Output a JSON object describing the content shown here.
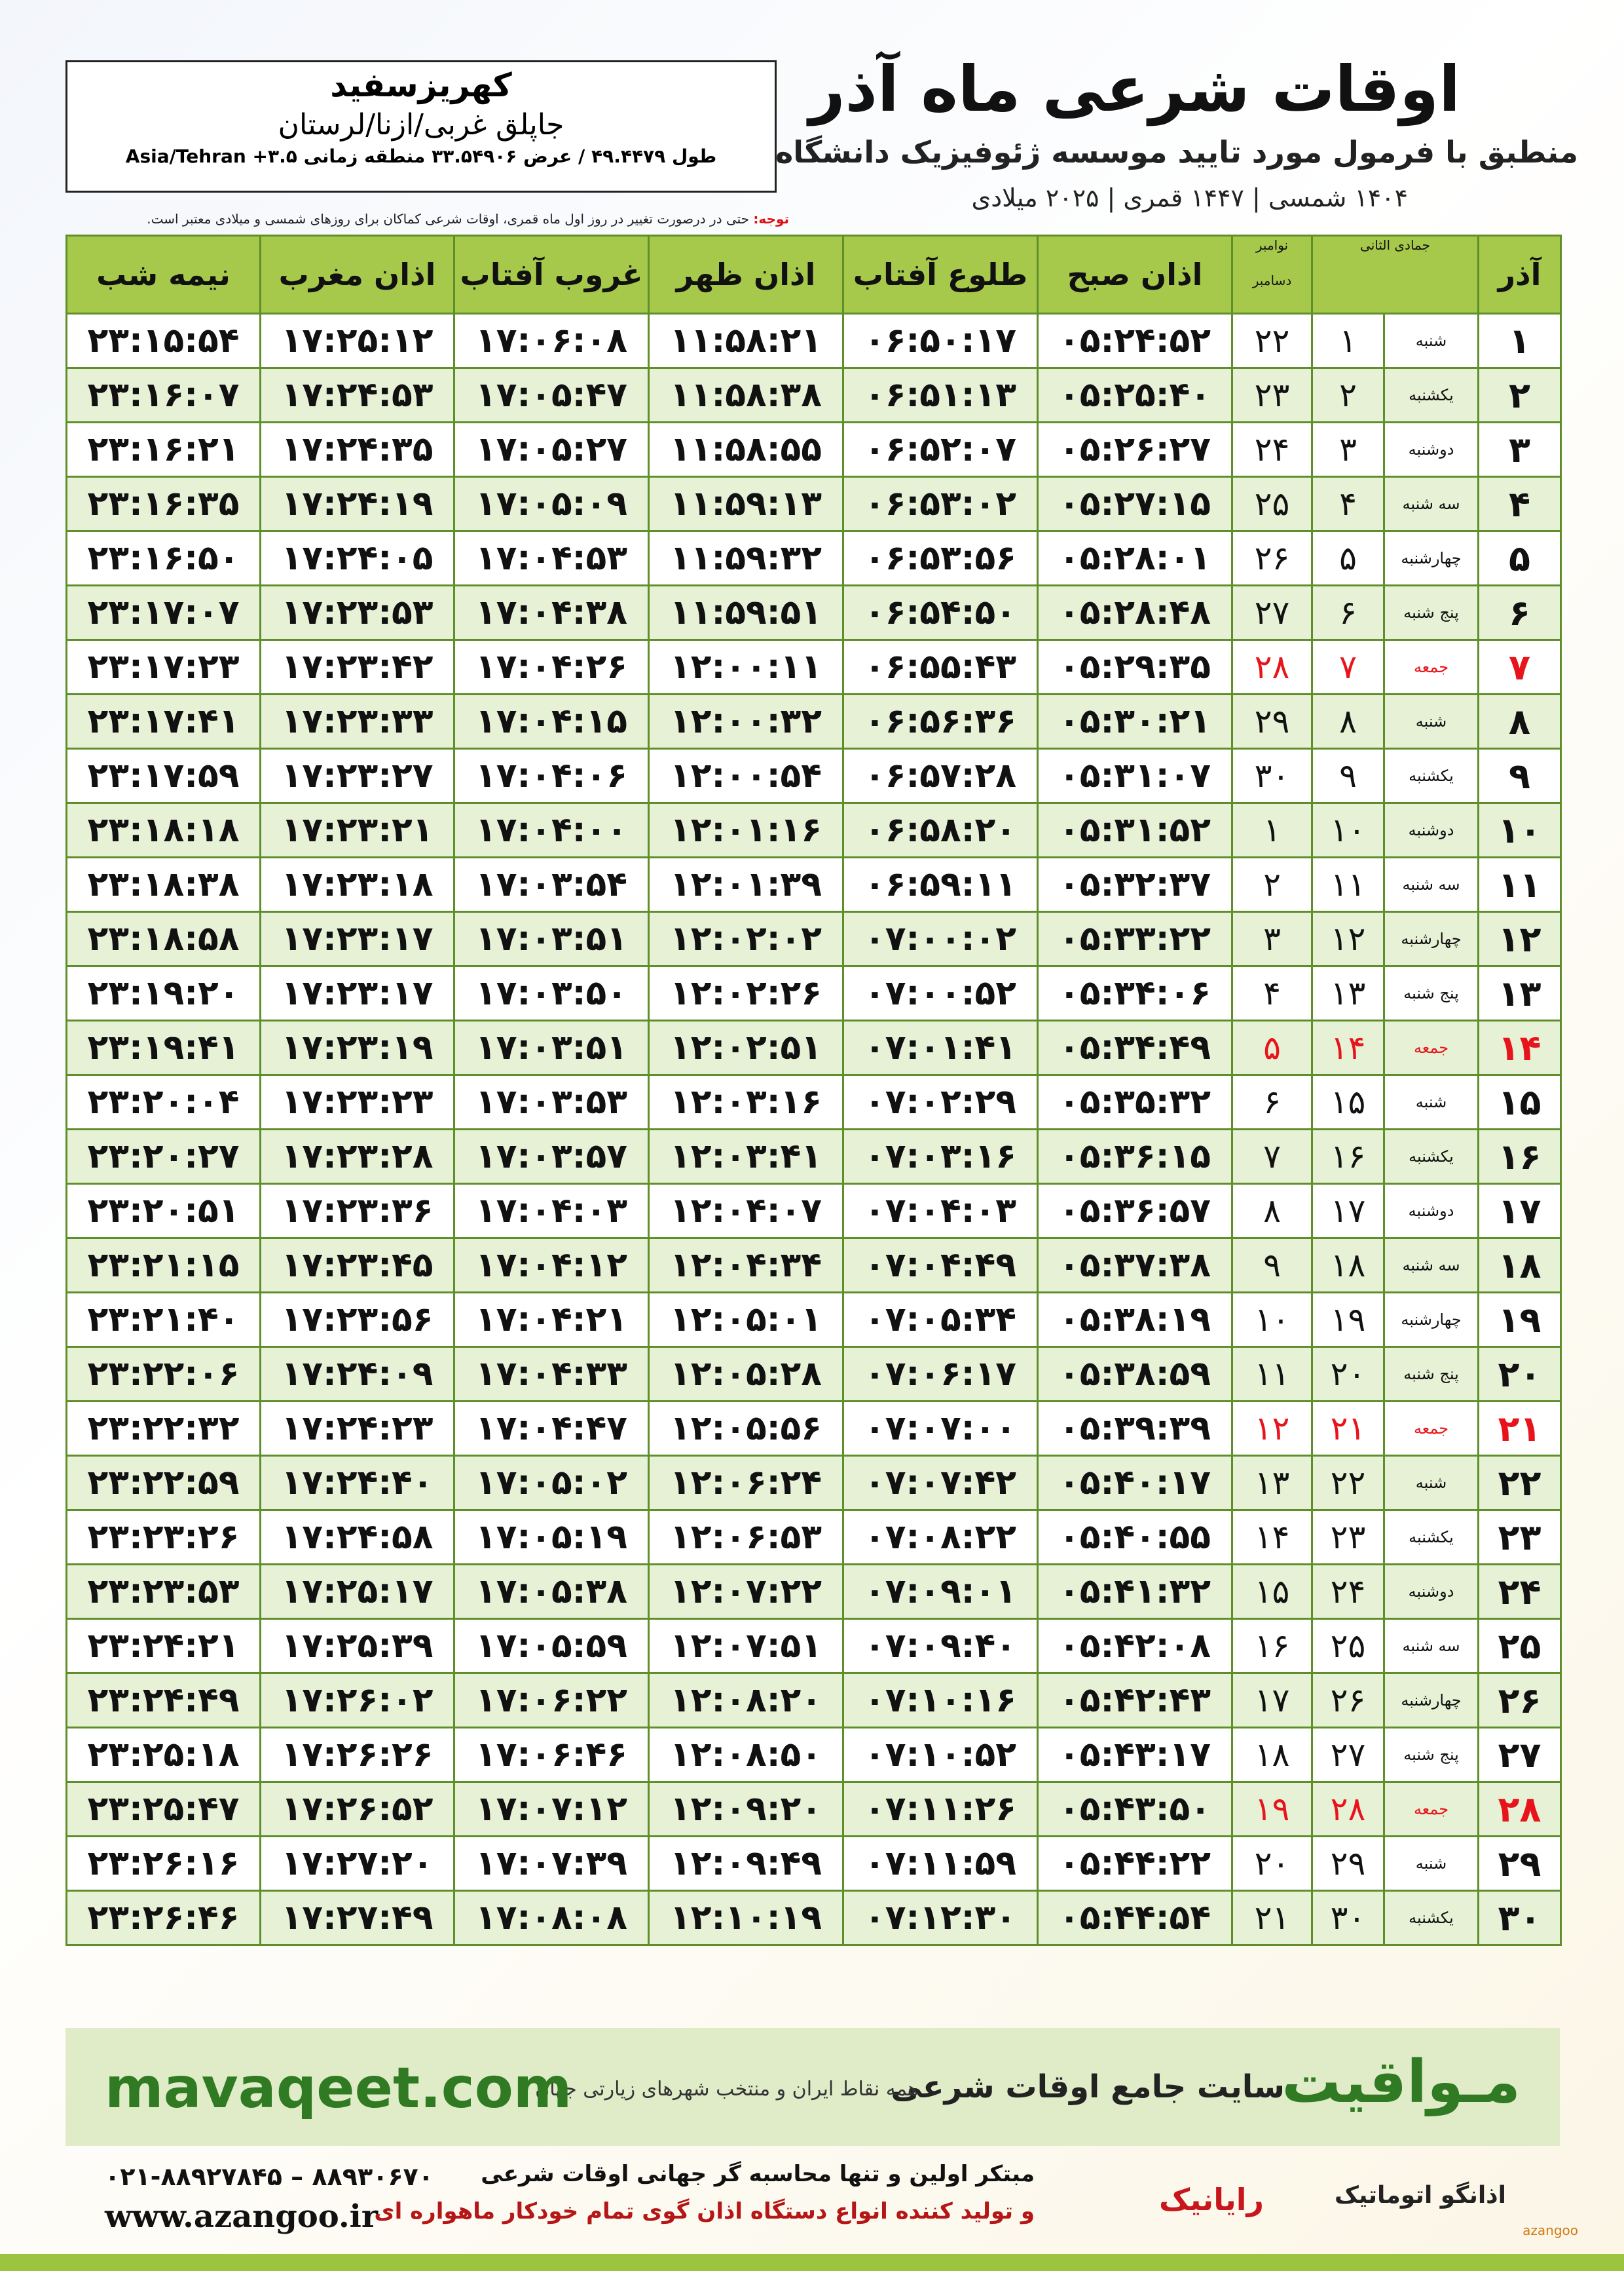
{
  "header": {
    "title": "اوقات شرعی ماه آذر",
    "subtitle": "منطبق با فرمول مورد تایید موسسه ژئوفیزیک دانشگاه تهران",
    "dates": "۱۴۰۴ شمسی | ۱۴۴۷ قمری | ۲۰۲۵ میلادی"
  },
  "location": {
    "name": "کهریزسفید",
    "region": "جاپلق غربی/ازنا/لرستان",
    "coords": "طول ۴۹.۴۴۷۹ / عرض ۳۳.۵۴۹۰۶ منطقه زمانی ۳.۵+ Asia/Tehran"
  },
  "note": {
    "label": "توجه:",
    "text": "حتی در درصورت تغییر در روز اول ماه قمری، اوقات شرعی کماکان برای روزهای شمسی و میلادی معتبر است."
  },
  "table": {
    "holiday_color": "#e8141b",
    "columns": [
      "آذر",
      "جمادی الثانی",
      "نوامبر",
      "دسامبر",
      "اذان صبح",
      "طلوع آفتاب",
      "اذان ظهر",
      "غروب آفتاب",
      "اذان مغرب",
      "نیمه شب"
    ],
    "rows": [
      {
        "cells": [
          "۱",
          "شنبه",
          "۱",
          "۲۲",
          "۰۵:۲۴:۵۲",
          "۰۶:۵۰:۱۷",
          "۱۱:۵۸:۲۱",
          "۱۷:۰۶:۰۸",
          "۱۷:۲۵:۱۲",
          "۲۳:۱۵:۵۴"
        ]
      },
      {
        "cells": [
          "۲",
          "یکشنبه",
          "۲",
          "۲۳",
          "۰۵:۲۵:۴۰",
          "۰۶:۵۱:۱۳",
          "۱۱:۵۸:۳۸",
          "۱۷:۰۵:۴۷",
          "۱۷:۲۴:۵۳",
          "۲۳:۱۶:۰۷"
        ]
      },
      {
        "cells": [
          "۳",
          "دوشنبه",
          "۳",
          "۲۴",
          "۰۵:۲۶:۲۷",
          "۰۶:۵۲:۰۷",
          "۱۱:۵۸:۵۵",
          "۱۷:۰۵:۲۷",
          "۱۷:۲۴:۳۵",
          "۲۳:۱۶:۲۱"
        ]
      },
      {
        "cells": [
          "۴",
          "سه شنبه",
          "۴",
          "۲۵",
          "۰۵:۲۷:۱۵",
          "۰۶:۵۳:۰۲",
          "۱۱:۵۹:۱۳",
          "۱۷:۰۵:۰۹",
          "۱۷:۲۴:۱۹",
          "۲۳:۱۶:۳۵"
        ]
      },
      {
        "cells": [
          "۵",
          "چهارشنبه",
          "۵",
          "۲۶",
          "۰۵:۲۸:۰۱",
          "۰۶:۵۳:۵۶",
          "۱۱:۵۹:۳۲",
          "۱۷:۰۴:۵۳",
          "۱۷:۲۴:۰۵",
          "۲۳:۱۶:۵۰"
        ]
      },
      {
        "cells": [
          "۶",
          "پنج شنبه",
          "۶",
          "۲۷",
          "۰۵:۲۸:۴۸",
          "۰۶:۵۴:۵۰",
          "۱۱:۵۹:۵۱",
          "۱۷:۰۴:۳۸",
          "۱۷:۲۳:۵۳",
          "۲۳:۱۷:۰۷"
        ]
      },
      {
        "cells": [
          "۷",
          "جمعه",
          "۷",
          "۲۸",
          "۰۵:۲۹:۳۵",
          "۰۶:۵۵:۴۳",
          "۱۲:۰۰:۱۱",
          "۱۷:۰۴:۲۶",
          "۱۷:۲۳:۴۲",
          "۲۳:۱۷:۲۳"
        ],
        "holiday": true
      },
      {
        "cells": [
          "۸",
          "شنبه",
          "۸",
          "۲۹",
          "۰۵:۳۰:۲۱",
          "۰۶:۵۶:۳۶",
          "۱۲:۰۰:۳۲",
          "۱۷:۰۴:۱۵",
          "۱۷:۲۳:۳۳",
          "۲۳:۱۷:۴۱"
        ]
      },
      {
        "cells": [
          "۹",
          "یکشنبه",
          "۹",
          "۳۰",
          "۰۵:۳۱:۰۷",
          "۰۶:۵۷:۲۸",
          "۱۲:۰۰:۵۴",
          "۱۷:۰۴:۰۶",
          "۱۷:۲۳:۲۷",
          "۲۳:۱۷:۵۹"
        ]
      },
      {
        "cells": [
          "۱۰",
          "دوشنبه",
          "۱۰",
          "۱",
          "۰۵:۳۱:۵۲",
          "۰۶:۵۸:۲۰",
          "۱۲:۰۱:۱۶",
          "۱۷:۰۴:۰۰",
          "۱۷:۲۳:۲۱",
          "۲۳:۱۸:۱۸"
        ]
      },
      {
        "cells": [
          "۱۱",
          "سه شنبه",
          "۱۱",
          "۲",
          "۰۵:۳۲:۳۷",
          "۰۶:۵۹:۱۱",
          "۱۲:۰۱:۳۹",
          "۱۷:۰۳:۵۴",
          "۱۷:۲۳:۱۸",
          "۲۳:۱۸:۳۸"
        ]
      },
      {
        "cells": [
          "۱۲",
          "چهارشنبه",
          "۱۲",
          "۳",
          "۰۵:۳۳:۲۲",
          "۰۷:۰۰:۰۲",
          "۱۲:۰۲:۰۲",
          "۱۷:۰۳:۵۱",
          "۱۷:۲۳:۱۷",
          "۲۳:۱۸:۵۸"
        ]
      },
      {
        "cells": [
          "۱۳",
          "پنج شنبه",
          "۱۳",
          "۴",
          "۰۵:۳۴:۰۶",
          "۰۷:۰۰:۵۲",
          "۱۲:۰۲:۲۶",
          "۱۷:۰۳:۵۰",
          "۱۷:۲۳:۱۷",
          "۲۳:۱۹:۲۰"
        ]
      },
      {
        "cells": [
          "۱۴",
          "جمعه",
          "۱۴",
          "۵",
          "۰۵:۳۴:۴۹",
          "۰۷:۰۱:۴۱",
          "۱۲:۰۲:۵۱",
          "۱۷:۰۳:۵۱",
          "۱۷:۲۳:۱۹",
          "۲۳:۱۹:۴۱"
        ],
        "holiday": true
      },
      {
        "cells": [
          "۱۵",
          "شنبه",
          "۱۵",
          "۶",
          "۰۵:۳۵:۳۲",
          "۰۷:۰۲:۲۹",
          "۱۲:۰۳:۱۶",
          "۱۷:۰۳:۵۳",
          "۱۷:۲۳:۲۳",
          "۲۳:۲۰:۰۴"
        ]
      },
      {
        "cells": [
          "۱۶",
          "یکشنبه",
          "۱۶",
          "۷",
          "۰۵:۳۶:۱۵",
          "۰۷:۰۳:۱۶",
          "۱۲:۰۳:۴۱",
          "۱۷:۰۳:۵۷",
          "۱۷:۲۳:۲۸",
          "۲۳:۲۰:۲۷"
        ]
      },
      {
        "cells": [
          "۱۷",
          "دوشنبه",
          "۱۷",
          "۸",
          "۰۵:۳۶:۵۷",
          "۰۷:۰۴:۰۳",
          "۱۲:۰۴:۰۷",
          "۱۷:۰۴:۰۳",
          "۱۷:۲۳:۳۶",
          "۲۳:۲۰:۵۱"
        ]
      },
      {
        "cells": [
          "۱۸",
          "سه شنبه",
          "۱۸",
          "۹",
          "۰۵:۳۷:۳۸",
          "۰۷:۰۴:۴۹",
          "۱۲:۰۴:۳۴",
          "۱۷:۰۴:۱۲",
          "۱۷:۲۳:۴۵",
          "۲۳:۲۱:۱۵"
        ]
      },
      {
        "cells": [
          "۱۹",
          "چهارشنبه",
          "۱۹",
          "۱۰",
          "۰۵:۳۸:۱۹",
          "۰۷:۰۵:۳۴",
          "۱۲:۰۵:۰۱",
          "۱۷:۰۴:۲۱",
          "۱۷:۲۳:۵۶",
          "۲۳:۲۱:۴۰"
        ]
      },
      {
        "cells": [
          "۲۰",
          "پنج شنبه",
          "۲۰",
          "۱۱",
          "۰۵:۳۸:۵۹",
          "۰۷:۰۶:۱۷",
          "۱۲:۰۵:۲۸",
          "۱۷:۰۴:۳۳",
          "۱۷:۲۴:۰۹",
          "۲۳:۲۲:۰۶"
        ]
      },
      {
        "cells": [
          "۲۱",
          "جمعه",
          "۲۱",
          "۱۲",
          "۰۵:۳۹:۳۹",
          "۰۷:۰۷:۰۰",
          "۱۲:۰۵:۵۶",
          "۱۷:۰۴:۴۷",
          "۱۷:۲۴:۲۳",
          "۲۳:۲۲:۳۲"
        ],
        "holiday": true
      },
      {
        "cells": [
          "۲۲",
          "شنبه",
          "۲۲",
          "۱۳",
          "۰۵:۴۰:۱۷",
          "۰۷:۰۷:۴۲",
          "۱۲:۰۶:۲۴",
          "۱۷:۰۵:۰۲",
          "۱۷:۲۴:۴۰",
          "۲۳:۲۲:۵۹"
        ]
      },
      {
        "cells": [
          "۲۳",
          "یکشنبه",
          "۲۳",
          "۱۴",
          "۰۵:۴۰:۵۵",
          "۰۷:۰۸:۲۲",
          "۱۲:۰۶:۵۳",
          "۱۷:۰۵:۱۹",
          "۱۷:۲۴:۵۸",
          "۲۳:۲۳:۲۶"
        ]
      },
      {
        "cells": [
          "۲۴",
          "دوشنبه",
          "۲۴",
          "۱۵",
          "۰۵:۴۱:۳۲",
          "۰۷:۰۹:۰۱",
          "۱۲:۰۷:۲۲",
          "۱۷:۰۵:۳۸",
          "۱۷:۲۵:۱۷",
          "۲۳:۲۳:۵۳"
        ]
      },
      {
        "cells": [
          "۲۵",
          "سه شنبه",
          "۲۵",
          "۱۶",
          "۰۵:۴۲:۰۸",
          "۰۷:۰۹:۴۰",
          "۱۲:۰۷:۵۱",
          "۱۷:۰۵:۵۹",
          "۱۷:۲۵:۳۹",
          "۲۳:۲۴:۲۱"
        ]
      },
      {
        "cells": [
          "۲۶",
          "چهارشنبه",
          "۲۶",
          "۱۷",
          "۰۵:۴۲:۴۳",
          "۰۷:۱۰:۱۶",
          "۱۲:۰۸:۲۰",
          "۱۷:۰۶:۲۲",
          "۱۷:۲۶:۰۲",
          "۲۳:۲۴:۴۹"
        ]
      },
      {
        "cells": [
          "۲۷",
          "پنج شنبه",
          "۲۷",
          "۱۸",
          "۰۵:۴۳:۱۷",
          "۰۷:۱۰:۵۲",
          "۱۲:۰۸:۵۰",
          "۱۷:۰۶:۴۶",
          "۱۷:۲۶:۲۶",
          "۲۳:۲۵:۱۸"
        ]
      },
      {
        "cells": [
          "۲۸",
          "جمعه",
          "۲۸",
          "۱۹",
          "۰۵:۴۳:۵۰",
          "۰۷:۱۱:۲۶",
          "۱۲:۰۹:۲۰",
          "۱۷:۰۷:۱۲",
          "۱۷:۲۶:۵۲",
          "۲۳:۲۵:۴۷"
        ],
        "holiday": true
      },
      {
        "cells": [
          "۲۹",
          "شنبه",
          "۲۹",
          "۲۰",
          "۰۵:۴۴:۲۲",
          "۰۷:۱۱:۵۹",
          "۱۲:۰۹:۴۹",
          "۱۷:۰۷:۳۹",
          "۱۷:۲۷:۲۰",
          "۲۳:۲۶:۱۶"
        ]
      },
      {
        "cells": [
          "۳۰",
          "یکشنبه",
          "۳۰",
          "۲۱",
          "۰۵:۴۴:۵۴",
          "۰۷:۱۲:۳۰",
          "۱۲:۱۰:۱۹",
          "۱۷:۰۸:۰۸",
          "۱۷:۲۷:۴۹",
          "۲۳:۲۶:۴۶"
        ]
      }
    ]
  },
  "banner": {
    "brand": "مـواقیت",
    "tagline": "سایت جامع اوقات شرعی",
    "sub": "همه نقاط ایران و منتخب شهرهای زیارتی جهان",
    "url": "mavaqeet.com"
  },
  "footer": {
    "phone": "۰۲۱-۸۸۹۲۷۸۴۵ – ۸۸۹۳۰۶۷۰",
    "site": "www.azangoo.ir",
    "line1": "مبتکر اولین و تنها محاسبه گر جهانی اوقات شرعی",
    "line2": "و تولید کننده انواع دستگاه اذان گوی تمام خودکار ماهواره ای",
    "logo1": "رایانیک",
    "logo2": "اذانگو اتوماتیک",
    "logo3": "azangoo"
  }
}
